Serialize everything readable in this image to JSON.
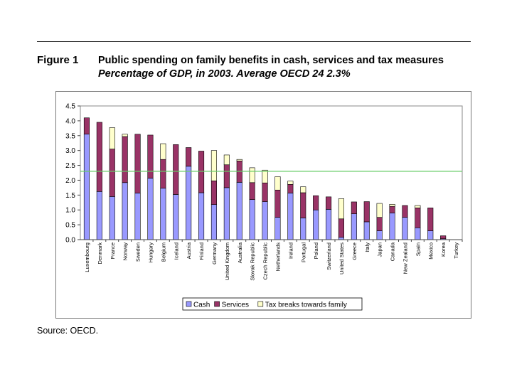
{
  "figure": {
    "label": "Figure 1",
    "title_main": "Public spending on family benefits in cash, services and tax measures",
    "title_italic": "Percentage of GDP, in 2003. Average OECD 24 2.3%"
  },
  "source": "Source: OECD.",
  "chart_data": {
    "type": "bar",
    "stacked": true,
    "categories": [
      "Luxembourg",
      "Denmark",
      "France",
      "Norway",
      "Sweden",
      "Hungary",
      "Belgium",
      "Iceland",
      "Austria",
      "Finland",
      "Germany",
      "United Kingdom",
      "Australia",
      "Slovak Republic",
      "Czech Republic",
      "Netherlands",
      "Ireland",
      "Portugal",
      "Poland",
      "Switzerland",
      "United States",
      "Greece",
      "Italy",
      "Japan",
      "Canada",
      "New Zealand",
      "Spain",
      "Mexico",
      "Korea",
      "Turkey"
    ],
    "series": [
      {
        "name": "Cash",
        "color": "#9999ff",
        "values": [
          3.55,
          1.62,
          1.45,
          1.92,
          1.57,
          2.07,
          1.73,
          1.52,
          2.47,
          1.58,
          1.18,
          1.75,
          1.93,
          1.35,
          1.28,
          0.75,
          1.57,
          0.73,
          1.0,
          1.02,
          0.08,
          0.87,
          0.6,
          0.3,
          0.9,
          0.75,
          0.4,
          0.3,
          0.03,
          0.0
        ]
      },
      {
        "name": "Services",
        "color": "#993366",
        "values": [
          0.55,
          2.33,
          1.6,
          1.55,
          1.98,
          1.45,
          0.97,
          1.68,
          0.63,
          1.4,
          0.8,
          0.77,
          0.72,
          0.57,
          0.63,
          0.92,
          0.29,
          0.85,
          0.48,
          0.42,
          0.62,
          0.4,
          0.68,
          0.45,
          0.22,
          0.4,
          0.67,
          0.77,
          0.1,
          0.0
        ]
      },
      {
        "name": "Tax breaks towards family",
        "color": "#ffffcc",
        "values": [
          0.0,
          0.0,
          0.72,
          0.08,
          0.0,
          0.0,
          0.53,
          0.0,
          0.0,
          0.0,
          1.02,
          0.33,
          0.05,
          0.5,
          0.43,
          0.45,
          0.11,
          0.2,
          0.0,
          0.0,
          0.68,
          0.0,
          0.0,
          0.47,
          0.07,
          0.0,
          0.08,
          0.0,
          0.0,
          0.0
        ]
      }
    ],
    "average_line": {
      "value": 2.3,
      "color": "#66cc66"
    },
    "ylim": [
      0,
      4.5
    ],
    "yticks": [
      "0.0",
      "0.5",
      "1.0",
      "1.5",
      "2.0",
      "2.5",
      "3.0",
      "3.5",
      "4.0",
      "4.5"
    ],
    "grid": false,
    "legend_placement": "bottom-right"
  }
}
